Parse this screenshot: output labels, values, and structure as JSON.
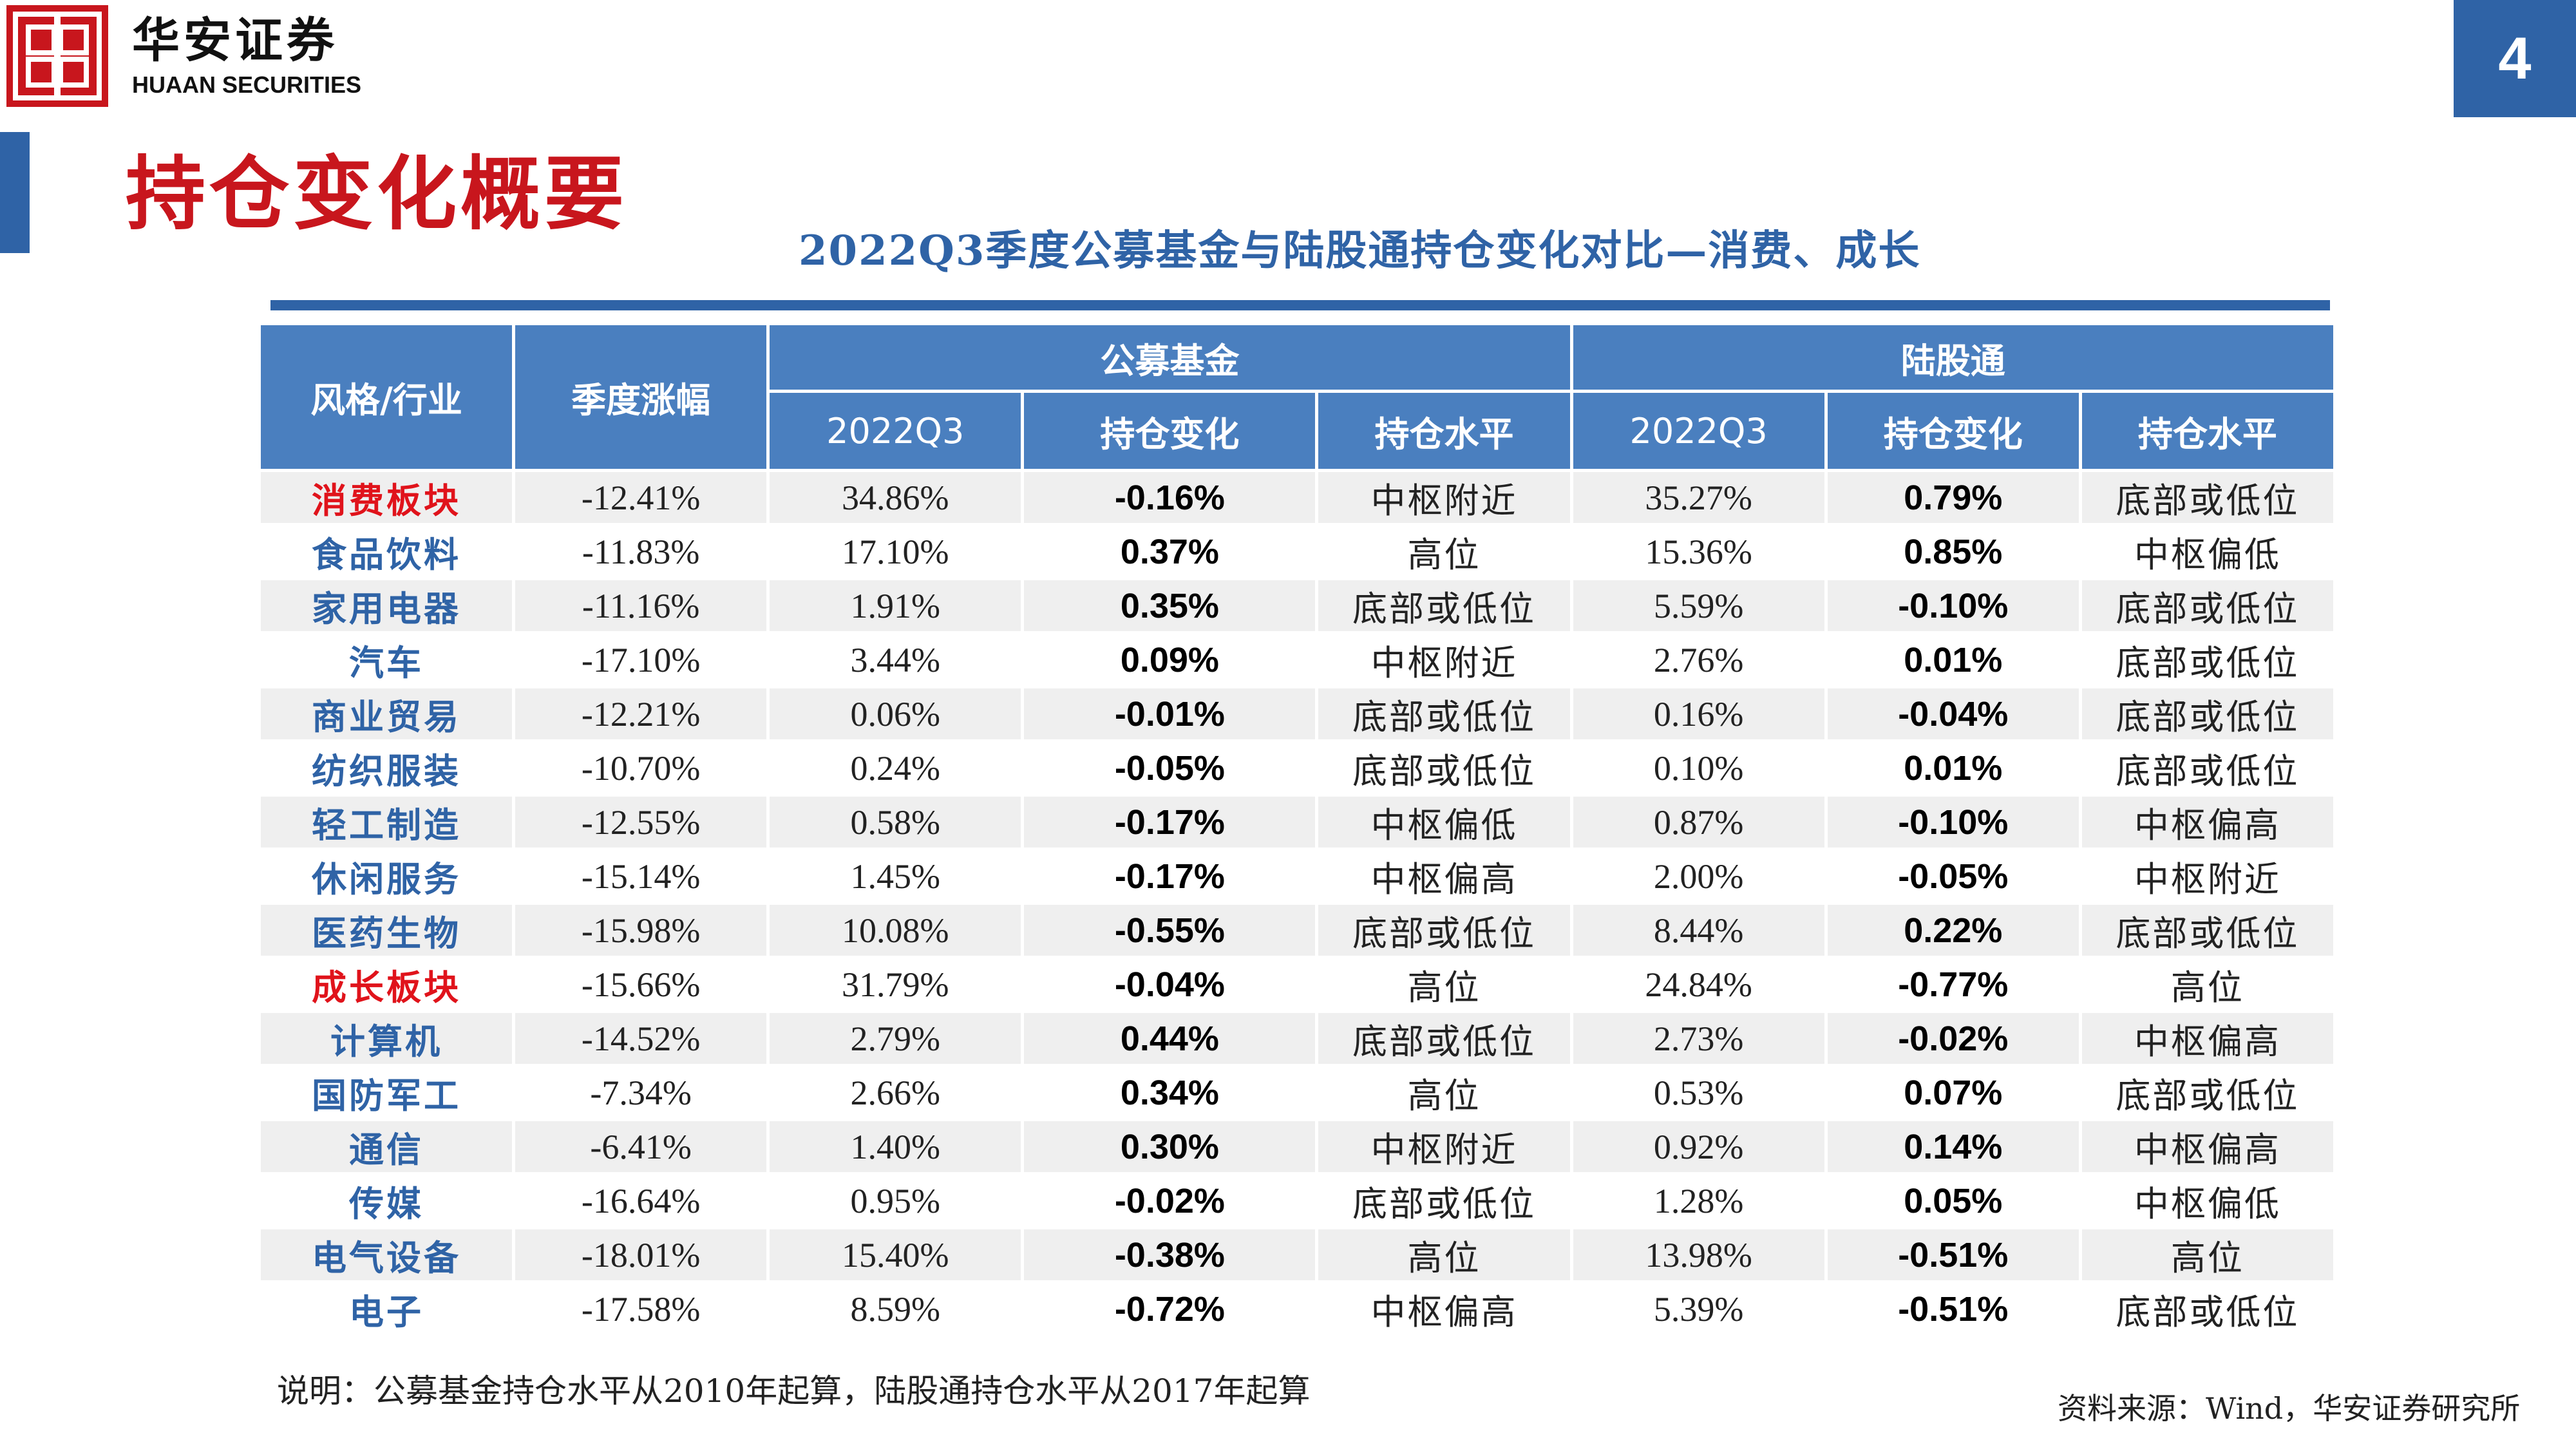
{
  "brand": {
    "name_cn": "华安证券",
    "name_en": "HUAAN SECURITIES",
    "color": "#c8161d"
  },
  "page_number": "4",
  "page_title": "持仓变化概要",
  "table_title": "2022Q3季度公募基金与陆股通持仓变化对比—消费、成长",
  "header": {
    "col_style": "风格/行业",
    "col_return": "季度涨幅",
    "group_fund": "公募基金",
    "group_hk": "陆股通",
    "sub": [
      "2022Q3",
      "持仓变化",
      "持仓水平",
      "2022Q3",
      "持仓变化",
      "持仓水平"
    ]
  },
  "rows": [
    {
      "name": "消费板块",
      "highlight": true,
      "ret": "-12.41%",
      "f_q3": "34.86%",
      "f_chg": "-0.16%",
      "f_lvl": "中枢附近",
      "h_q3": "35.27%",
      "h_chg": "0.79%",
      "h_lvl": "底部或低位"
    },
    {
      "name": "食品饮料",
      "highlight": false,
      "ret": "-11.83%",
      "f_q3": "17.10%",
      "f_chg": "0.37%",
      "f_lvl": "高位",
      "h_q3": "15.36%",
      "h_chg": "0.85%",
      "h_lvl": "中枢偏低"
    },
    {
      "name": "家用电器",
      "highlight": false,
      "ret": "-11.16%",
      "f_q3": "1.91%",
      "f_chg": "0.35%",
      "f_lvl": "底部或低位",
      "h_q3": "5.59%",
      "h_chg": "-0.10%",
      "h_lvl": "底部或低位"
    },
    {
      "name": "汽车",
      "highlight": false,
      "ret": "-17.10%",
      "f_q3": "3.44%",
      "f_chg": "0.09%",
      "f_lvl": "中枢附近",
      "h_q3": "2.76%",
      "h_chg": "0.01%",
      "h_lvl": "底部或低位"
    },
    {
      "name": "商业贸易",
      "highlight": false,
      "ret": "-12.21%",
      "f_q3": "0.06%",
      "f_chg": "-0.01%",
      "f_lvl": "底部或低位",
      "h_q3": "0.16%",
      "h_chg": "-0.04%",
      "h_lvl": "底部或低位"
    },
    {
      "name": "纺织服装",
      "highlight": false,
      "ret": "-10.70%",
      "f_q3": "0.24%",
      "f_chg": "-0.05%",
      "f_lvl": "底部或低位",
      "h_q3": "0.10%",
      "h_chg": "0.01%",
      "h_lvl": "底部或低位"
    },
    {
      "name": "轻工制造",
      "highlight": false,
      "ret": "-12.55%",
      "f_q3": "0.58%",
      "f_chg": "-0.17%",
      "f_lvl": "中枢偏低",
      "h_q3": "0.87%",
      "h_chg": "-0.10%",
      "h_lvl": "中枢偏高"
    },
    {
      "name": "休闲服务",
      "highlight": false,
      "ret": "-15.14%",
      "f_q3": "1.45%",
      "f_chg": "-0.17%",
      "f_lvl": "中枢偏高",
      "h_q3": "2.00%",
      "h_chg": "-0.05%",
      "h_lvl": "中枢附近"
    },
    {
      "name": "医药生物",
      "highlight": false,
      "ret": "-15.98%",
      "f_q3": "10.08%",
      "f_chg": "-0.55%",
      "f_lvl": "底部或低位",
      "h_q3": "8.44%",
      "h_chg": "0.22%",
      "h_lvl": "底部或低位"
    },
    {
      "name": "成长板块",
      "highlight": true,
      "ret": "-15.66%",
      "f_q3": "31.79%",
      "f_chg": "-0.04%",
      "f_lvl": "高位",
      "h_q3": "24.84%",
      "h_chg": "-0.77%",
      "h_lvl": "高位"
    },
    {
      "name": "计算机",
      "highlight": false,
      "ret": "-14.52%",
      "f_q3": "2.79%",
      "f_chg": "0.44%",
      "f_lvl": "底部或低位",
      "h_q3": "2.73%",
      "h_chg": "-0.02%",
      "h_lvl": "中枢偏高"
    },
    {
      "name": "国防军工",
      "highlight": false,
      "ret": "-7.34%",
      "f_q3": "2.66%",
      "f_chg": "0.34%",
      "f_lvl": "高位",
      "h_q3": "0.53%",
      "h_chg": "0.07%",
      "h_lvl": "底部或低位"
    },
    {
      "name": "通信",
      "highlight": false,
      "ret": "-6.41%",
      "f_q3": "1.40%",
      "f_chg": "0.30%",
      "f_lvl": "中枢附近",
      "h_q3": "0.92%",
      "h_chg": "0.14%",
      "h_lvl": "中枢偏高"
    },
    {
      "name": "传媒",
      "highlight": false,
      "ret": "-16.64%",
      "f_q3": "0.95%",
      "f_chg": "-0.02%",
      "f_lvl": "底部或低位",
      "h_q3": "1.28%",
      "h_chg": "0.05%",
      "h_lvl": "中枢偏低"
    },
    {
      "name": "电气设备",
      "highlight": false,
      "ret": "-18.01%",
      "f_q3": "15.40%",
      "f_chg": "-0.38%",
      "f_lvl": "高位",
      "h_q3": "13.98%",
      "h_chg": "-0.51%",
      "h_lvl": "高位"
    },
    {
      "name": "电子",
      "highlight": false,
      "ret": "-17.58%",
      "f_q3": "8.59%",
      "f_chg": "-0.72%",
      "f_lvl": "中枢偏高",
      "h_q3": "5.39%",
      "h_chg": "-0.51%",
      "h_lvl": "底部或低位"
    }
  ],
  "note": "说明：公募基金持仓水平从2010年起算，陆股通持仓水平从2017年起算",
  "source": "资料来源：Wind，华安证券研究所"
}
